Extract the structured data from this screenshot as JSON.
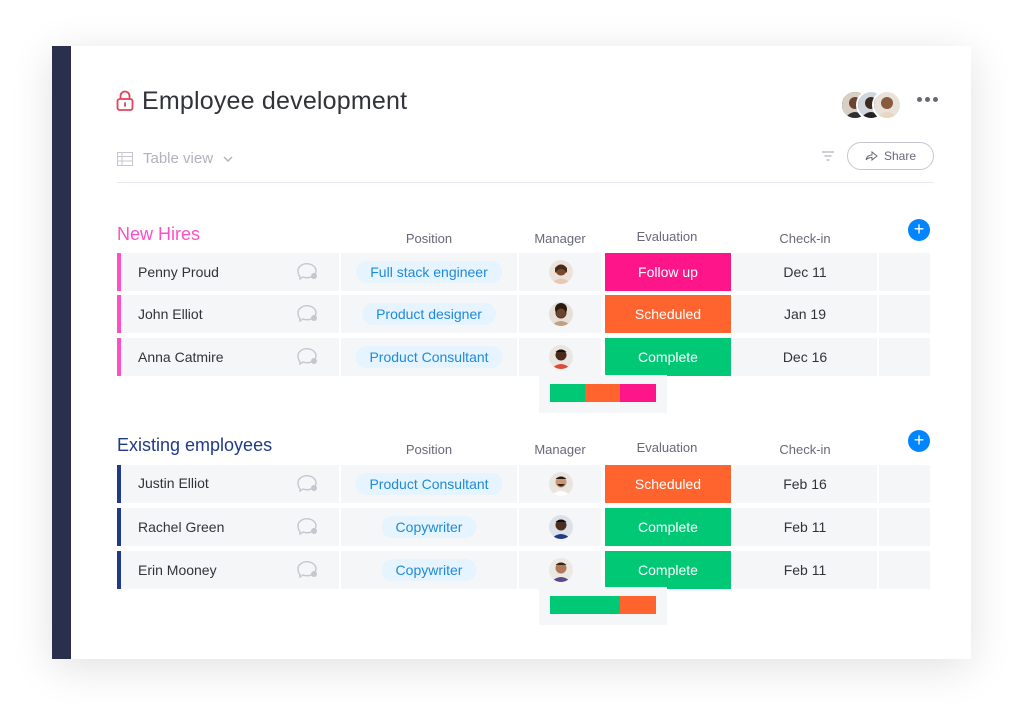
{
  "board": {
    "title": "Employee development",
    "view_label": "Table view",
    "share_label": "Share"
  },
  "colors": {
    "pink": "#e2445c",
    "pink_title": "#ff4fc4",
    "navy_title": "#1f3a86",
    "follow_up": "#ff158a",
    "scheduled": "#ff642e",
    "complete": "#00c875"
  },
  "columns": {
    "position": "Position",
    "manager": "Manager",
    "evaluation": "Evaluation",
    "checkin": "Check-in"
  },
  "groups": [
    {
      "title": "New Hires",
      "rows": [
        {
          "name": "Penny Proud",
          "position": "Full stack engineer",
          "evaluation": "Follow up",
          "checkin": "Dec 11"
        },
        {
          "name": "John Elliot",
          "position": "Product designer",
          "evaluation": "Scheduled",
          "checkin": "Jan 19"
        },
        {
          "name": "Anna Catmire",
          "position": "Product Consultant",
          "evaluation": "Complete",
          "checkin": "Dec 16"
        }
      ]
    },
    {
      "title": "Existing employees",
      "rows": [
        {
          "name": "Justin Elliot",
          "position": "Product Consultant",
          "evaluation": "Scheduled",
          "checkin": "Feb 16"
        },
        {
          "name": "Rachel Green",
          "position": "Copywriter",
          "evaluation": "Complete",
          "checkin": "Feb 11"
        },
        {
          "name": "Erin Mooney",
          "position": "Copywriter",
          "evaluation": "Complete",
          "checkin": "Feb 11"
        }
      ]
    }
  ]
}
